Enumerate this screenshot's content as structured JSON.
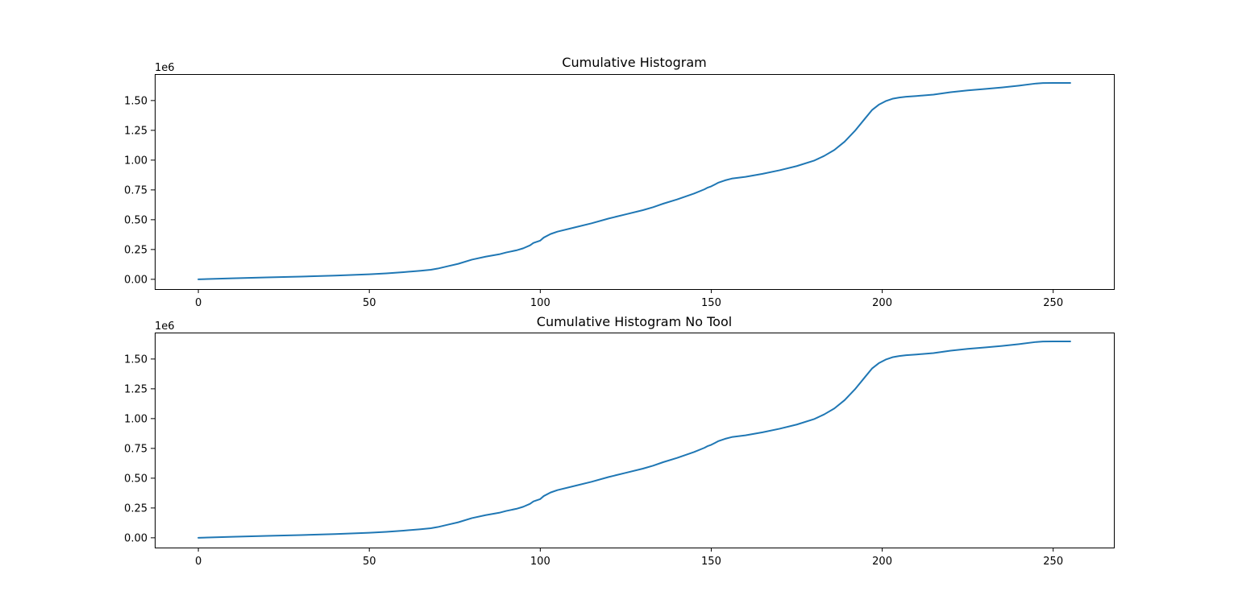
{
  "figure": {
    "background": "#ffffff"
  },
  "chart_data": [
    {
      "type": "line",
      "title": "Cumulative Histogram",
      "xlabel": "",
      "ylabel": "",
      "y_offset_label": "1e6",
      "xlim": [
        -12.75,
        267.75
      ],
      "ylim": [
        -0.082,
        1.722
      ],
      "xticks": [
        0,
        50,
        100,
        150,
        200,
        250
      ],
      "xtick_labels": [
        "0",
        "50",
        "100",
        "150",
        "200",
        "250"
      ],
      "yticks": [
        0,
        0.25,
        0.5,
        0.75,
        1.0,
        1.25,
        1.5
      ],
      "ytick_labels": [
        "0.00",
        "0.25",
        "0.50",
        "0.75",
        "1.00",
        "1.25",
        "1.50"
      ],
      "grid": false,
      "series": [
        {
          "color": "#1f77b4",
          "x": [
            0,
            10,
            20,
            30,
            40,
            50,
            55,
            60,
            65,
            68,
            70,
            73,
            76,
            80,
            84,
            88,
            90,
            93,
            95,
            97,
            98,
            100,
            101,
            103,
            105,
            110,
            115,
            120,
            125,
            130,
            133,
            136,
            140,
            145,
            148,
            149,
            150,
            151,
            152,
            154,
            156,
            160,
            165,
            170,
            175,
            180,
            183,
            186,
            189,
            192,
            195,
            197,
            199,
            201,
            203,
            205,
            207,
            210,
            215,
            220,
            225,
            230,
            235,
            240,
            245,
            247,
            250,
            255
          ],
          "y": [
            0,
            0.008,
            0.016,
            0.023,
            0.031,
            0.042,
            0.05,
            0.06,
            0.072,
            0.08,
            0.09,
            0.11,
            0.13,
            0.165,
            0.19,
            0.21,
            0.225,
            0.243,
            0.26,
            0.285,
            0.305,
            0.325,
            0.35,
            0.38,
            0.4,
            0.435,
            0.47,
            0.51,
            0.545,
            0.58,
            0.605,
            0.635,
            0.67,
            0.72,
            0.755,
            0.77,
            0.78,
            0.795,
            0.81,
            0.83,
            0.845,
            0.86,
            0.885,
            0.915,
            0.95,
            0.995,
            1.035,
            1.085,
            1.155,
            1.245,
            1.35,
            1.42,
            1.465,
            1.495,
            1.515,
            1.525,
            1.532,
            1.538,
            1.55,
            1.57,
            1.585,
            1.597,
            1.61,
            1.625,
            1.643,
            1.647,
            1.648,
            1.648
          ]
        }
      ]
    },
    {
      "type": "line",
      "title": "Cumulative Histogram No Tool",
      "xlabel": "",
      "ylabel": "",
      "y_offset_label": "1e6",
      "xlim": [
        -12.75,
        267.75
      ],
      "ylim": [
        -0.082,
        1.722
      ],
      "xticks": [
        0,
        50,
        100,
        150,
        200,
        250
      ],
      "xtick_labels": [
        "0",
        "50",
        "100",
        "150",
        "200",
        "250"
      ],
      "yticks": [
        0,
        0.25,
        0.5,
        0.75,
        1.0,
        1.25,
        1.5
      ],
      "ytick_labels": [
        "0.00",
        "0.25",
        "0.50",
        "0.75",
        "1.00",
        "1.25",
        "1.50"
      ],
      "grid": false,
      "series": [
        {
          "color": "#1f77b4",
          "x": [
            0,
            10,
            20,
            30,
            40,
            50,
            55,
            60,
            65,
            68,
            70,
            73,
            76,
            80,
            84,
            88,
            90,
            93,
            95,
            97,
            98,
            100,
            101,
            103,
            105,
            110,
            115,
            120,
            125,
            130,
            133,
            136,
            140,
            145,
            148,
            149,
            150,
            151,
            152,
            154,
            156,
            160,
            165,
            170,
            175,
            180,
            183,
            186,
            189,
            192,
            195,
            197,
            199,
            201,
            203,
            205,
            207,
            210,
            215,
            220,
            225,
            230,
            235,
            240,
            245,
            247,
            250,
            255
          ],
          "y": [
            0,
            0.008,
            0.016,
            0.023,
            0.031,
            0.042,
            0.05,
            0.06,
            0.072,
            0.08,
            0.09,
            0.11,
            0.13,
            0.165,
            0.19,
            0.21,
            0.225,
            0.243,
            0.26,
            0.285,
            0.305,
            0.325,
            0.35,
            0.38,
            0.4,
            0.435,
            0.47,
            0.51,
            0.545,
            0.58,
            0.605,
            0.635,
            0.67,
            0.72,
            0.755,
            0.77,
            0.78,
            0.795,
            0.81,
            0.83,
            0.845,
            0.86,
            0.885,
            0.915,
            0.95,
            0.995,
            1.035,
            1.085,
            1.155,
            1.245,
            1.35,
            1.42,
            1.465,
            1.495,
            1.515,
            1.525,
            1.532,
            1.538,
            1.55,
            1.57,
            1.585,
            1.597,
            1.61,
            1.625,
            1.643,
            1.647,
            1.648,
            1.648
          ]
        }
      ]
    }
  ]
}
